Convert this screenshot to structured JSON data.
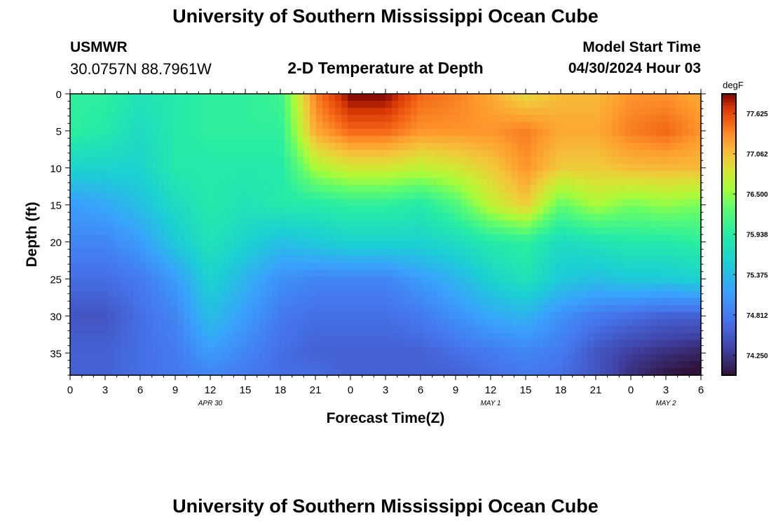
{
  "header": {
    "title": "University of Southern Mississippi Ocean Cube",
    "station": "USMWR",
    "coords": "30.0757N  88.7961W",
    "subtitle": "2-D Temperature at Depth",
    "start_label": "Model Start Time",
    "start_value": "04/30/2024 Hour 03"
  },
  "footer": {
    "title": "University of Southern Mississippi Ocean Cube"
  },
  "chart_data": {
    "type": "heatmap",
    "title": "2-D Temperature at Depth",
    "xlabel": "Forecast Time(Z)",
    "ylabel": "Depth (ft)",
    "units": "degF",
    "x_hours": [
      0,
      3,
      6,
      9,
      12,
      15,
      18,
      21,
      24,
      27,
      30,
      33,
      36,
      39,
      42,
      45,
      48,
      51,
      54
    ],
    "x_tick_labels": [
      "0",
      "3",
      "6",
      "9",
      "12",
      "15",
      "18",
      "21",
      "0",
      "3",
      "6",
      "9",
      "12",
      "15",
      "18",
      "21",
      "0",
      "3",
      "6"
    ],
    "date_labels": [
      {
        "hour": 12,
        "text": "APR 30"
      },
      {
        "hour": 36,
        "text": "MAY 1"
      },
      {
        "hour": 51,
        "text": "MAY 2"
      }
    ],
    "depths": [
      0,
      5,
      10,
      15,
      20,
      25,
      30,
      35,
      38
    ],
    "y_tick_labels": [
      "0",
      "5",
      "10",
      "15",
      "20",
      "25",
      "30",
      "35"
    ],
    "xlim": [
      0,
      54
    ],
    "ylim": [
      0,
      38
    ],
    "values_degF": [
      [
        76.0,
        76.0,
        75.8,
        75.9,
        76.0,
        76.0,
        76.1,
        77.4,
        77.9,
        77.9,
        77.5,
        77.4,
        77.2,
        76.9,
        77.1,
        77.1,
        77.3,
        77.3,
        77.2
      ],
      [
        76.0,
        75.9,
        75.7,
        75.9,
        76.0,
        76.0,
        76.0,
        77.2,
        77.5,
        77.5,
        77.3,
        77.3,
        77.3,
        77.4,
        77.2,
        77.2,
        77.4,
        77.5,
        77.3
      ],
      [
        75.6,
        75.6,
        75.6,
        75.9,
        75.9,
        75.9,
        75.9,
        76.6,
        76.8,
        76.8,
        76.7,
        76.8,
        77.0,
        77.3,
        77.0,
        77.0,
        77.1,
        77.1,
        77.1
      ],
      [
        75.1,
        75.2,
        75.4,
        75.7,
        75.9,
        75.8,
        75.9,
        75.9,
        76.0,
        76.0,
        75.9,
        76.2,
        76.7,
        77.0,
        76.3,
        76.6,
        76.4,
        76.5,
        76.4
      ],
      [
        74.9,
        74.9,
        75.1,
        75.5,
        75.8,
        75.6,
        75.4,
        75.5,
        75.6,
        75.6,
        75.6,
        75.7,
        75.9,
        76.0,
        75.7,
        75.8,
        75.9,
        75.9,
        76.0
      ],
      [
        74.7,
        74.7,
        74.8,
        75.1,
        75.6,
        75.3,
        75.0,
        74.9,
        74.9,
        74.9,
        75.1,
        75.3,
        75.6,
        75.8,
        75.5,
        75.4,
        75.5,
        75.5,
        75.6
      ],
      [
        74.5,
        74.5,
        74.7,
        74.9,
        75.4,
        75.1,
        74.8,
        74.7,
        74.7,
        74.7,
        74.8,
        75.0,
        75.2,
        75.3,
        75.0,
        74.8,
        74.7,
        74.6,
        74.6
      ],
      [
        74.6,
        74.6,
        74.7,
        74.8,
        75.1,
        74.9,
        74.7,
        74.6,
        74.6,
        74.6,
        74.6,
        74.7,
        74.8,
        74.9,
        74.8,
        74.5,
        74.3,
        74.2,
        74.1
      ],
      [
        74.6,
        74.6,
        74.7,
        74.8,
        74.9,
        74.8,
        74.7,
        74.7,
        74.6,
        74.6,
        74.6,
        74.6,
        74.7,
        74.8,
        74.7,
        74.5,
        74.2,
        74.0,
        73.9
      ]
    ],
    "colorbar": {
      "label": "degF",
      "range": [
        73.97,
        77.9
      ],
      "tick_values": [
        74.25,
        74.812,
        75.375,
        75.938,
        76.5,
        77.062,
        77.625
      ],
      "tick_labels": [
        "74.250",
        "74.812",
        "75.375",
        "75.938",
        "76.500",
        "77.062",
        "77.625"
      ]
    }
  }
}
